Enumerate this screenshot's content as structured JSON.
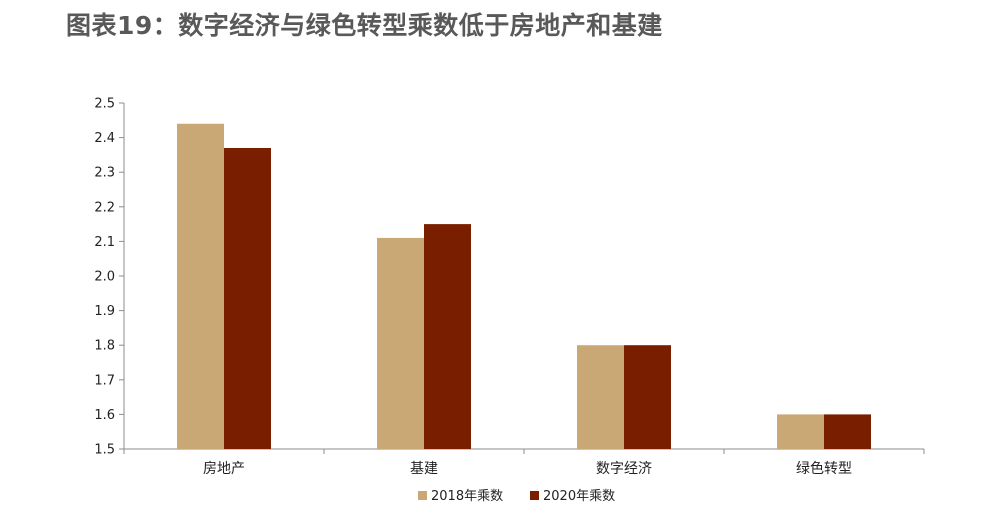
{
  "title": "图表19：数字经济与绿色转型乘数低于房地产和基建",
  "chart_data": {
    "type": "bar",
    "categories": [
      "房地产",
      "基建",
      "数字经济",
      "绿色转型"
    ],
    "series": [
      {
        "name": "2018年乘数",
        "color": "#C9A876",
        "values": [
          2.44,
          2.11,
          1.8,
          1.6
        ]
      },
      {
        "name": "2020年乘数",
        "color": "#7A1E00",
        "values": [
          2.37,
          2.15,
          1.8,
          1.6
        ]
      }
    ],
    "ylim": [
      1.5,
      2.5
    ],
    "yticks": [
      "1.5",
      "1.6",
      "1.7",
      "1.8",
      "1.9",
      "2.0",
      "2.1",
      "2.2",
      "2.3",
      "2.4",
      "2.5"
    ],
    "grid": false,
    "legend_position": "bottom"
  }
}
